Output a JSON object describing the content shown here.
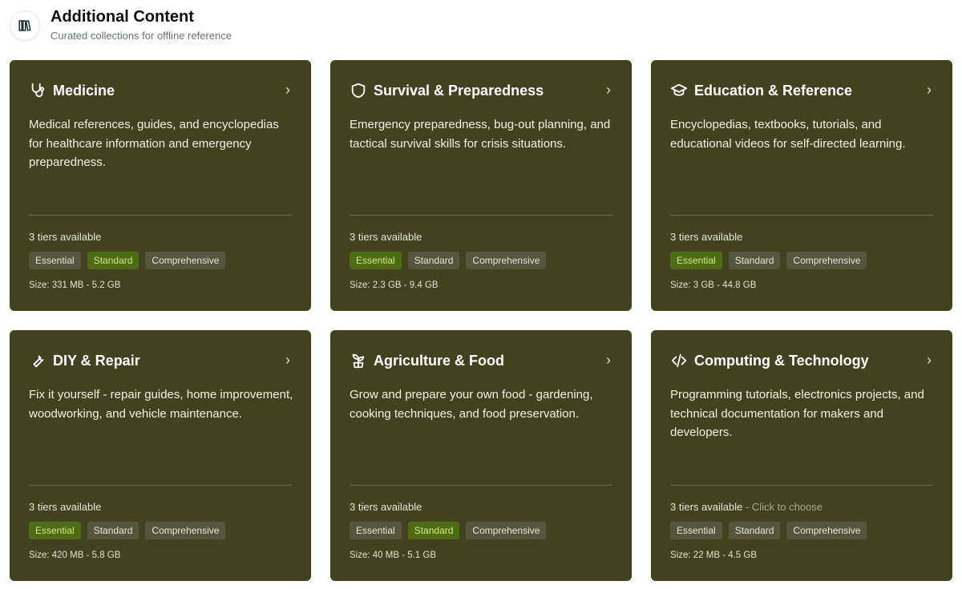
{
  "header": {
    "title": "Additional Content",
    "subtitle": "Curated collections for offline reference",
    "icon": "library-books-icon"
  },
  "colors": {
    "card_bg": "#424220",
    "selected_badge": "#4e6b16",
    "badge": "#56563e"
  },
  "cards": [
    {
      "title": "Medicine",
      "icon": "stethoscope-icon",
      "description": "Medical references, guides, and encyclopedias for healthcare information and emergency preparedness.",
      "tiers": "3 tiers available",
      "hint": "",
      "badges": [
        "Essential",
        "Standard",
        "Comprehensive"
      ],
      "selected": "Standard",
      "size": "Size: 331 MB - 5.2 GB"
    },
    {
      "title": "Survival & Preparedness",
      "icon": "shield-icon",
      "description": "Emergency preparedness, bug-out planning, and tactical survival skills for crisis situations.",
      "tiers": "3 tiers available",
      "hint": "",
      "badges": [
        "Essential",
        "Standard",
        "Comprehensive"
      ],
      "selected": "Essential",
      "size": "Size: 2.3 GB - 9.4 GB"
    },
    {
      "title": "Education & Reference",
      "icon": "graduation-cap-icon",
      "description": "Encyclopedias, textbooks, tutorials, and educational videos for self-directed learning.",
      "tiers": "3 tiers available",
      "hint": "",
      "badges": [
        "Essential",
        "Standard",
        "Comprehensive"
      ],
      "selected": "Essential",
      "size": "Size: 3 GB - 44.8 GB"
    },
    {
      "title": "DIY & Repair",
      "icon": "wrench-icon",
      "description": "Fix it yourself - repair guides, home improvement, woodworking, and vehicle maintenance.",
      "tiers": "3 tiers available",
      "hint": "",
      "badges": [
        "Essential",
        "Standard",
        "Comprehensive"
      ],
      "selected": "Essential",
      "size": "Size: 420 MB - 5.8 GB"
    },
    {
      "title": "Agriculture & Food",
      "icon": "sprout-icon",
      "description": "Grow and prepare your own food - gardening, cooking techniques, and food preservation.",
      "tiers": "3 tiers available",
      "hint": "",
      "badges": [
        "Essential",
        "Standard",
        "Comprehensive"
      ],
      "selected": "Standard",
      "size": "Size: 40 MB - 5.1 GB"
    },
    {
      "title": "Computing & Technology",
      "icon": "code-icon",
      "description": "Programming tutorials, electronics projects, and technical documentation for makers and developers.",
      "tiers": "3 tiers available",
      "hint": " - Click to choose",
      "badges": [
        "Essential",
        "Standard",
        "Comprehensive"
      ],
      "selected": "",
      "size": "Size: 22 MB - 4.5 GB"
    }
  ]
}
